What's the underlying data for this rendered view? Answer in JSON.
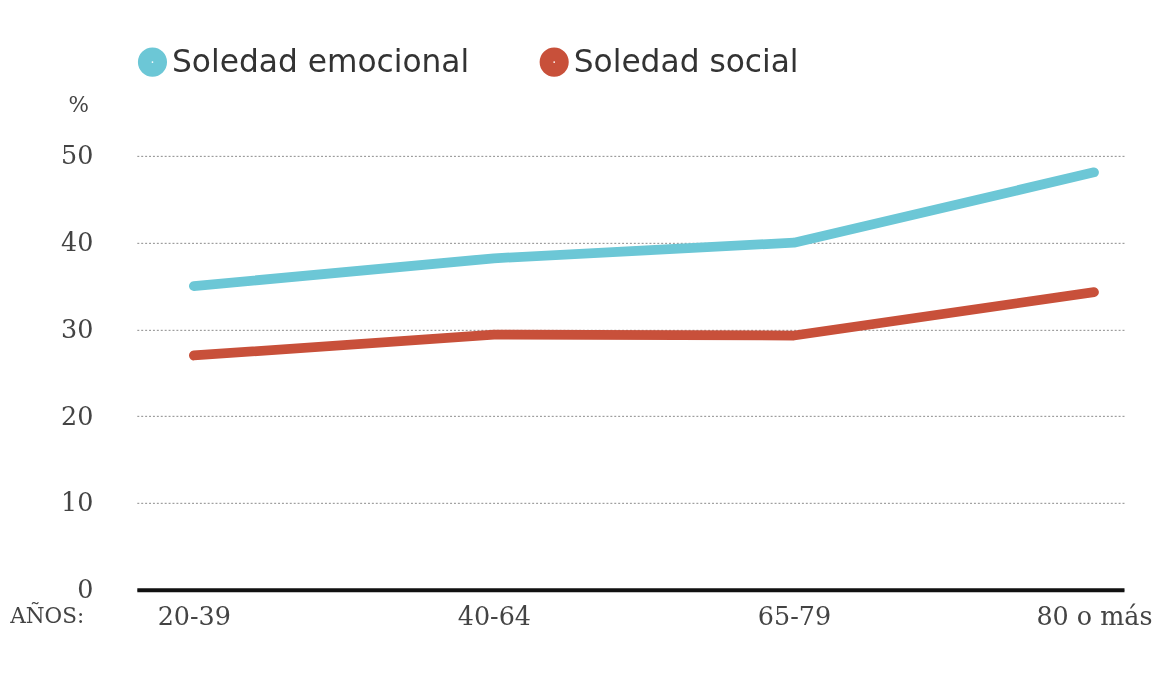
{
  "chart_data": {
    "type": "line",
    "xlabel": "AÑOS:",
    "ylabel": "%",
    "categories": [
      "20-39",
      "40-64",
      "65-79",
      "80 o más"
    ],
    "series": [
      {
        "name": "Soledad emocional",
        "color": "#6cc7d6",
        "values": [
          35,
          38.2,
          40,
          48.1
        ]
      },
      {
        "name": "Soledad social",
        "color": "#c8503a",
        "values": [
          27,
          29.4,
          29.3,
          34.3
        ]
      }
    ],
    "ylim": [
      0,
      50
    ],
    "yticks": [
      0,
      10,
      20,
      30,
      40,
      50
    ],
    "grid": "y",
    "legend": "top left",
    "marker": "none",
    "line_style": "solid"
  }
}
